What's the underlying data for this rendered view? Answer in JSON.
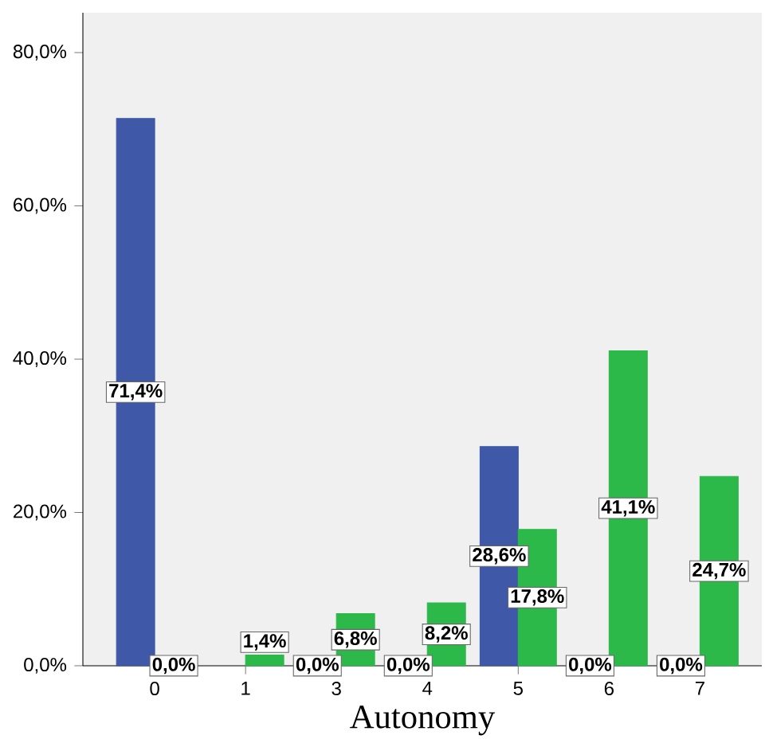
{
  "chart_data": {
    "type": "bar",
    "xlabel": "Autonomy",
    "categories": [
      "0",
      "1",
      "3",
      "4",
      "5",
      "6",
      "7"
    ],
    "series": [
      {
        "color": "#3f58a8",
        "values": [
          71.4,
          null,
          0,
          0,
          28.6,
          0,
          0
        ],
        "value_labels": [
          "71,4%",
          null,
          "0,0%",
          "0,0%",
          "28,6%",
          "0,0%",
          "0,0%"
        ]
      },
      {
        "color": "#2db84a",
        "values": [
          0,
          1.4,
          6.8,
          8.2,
          17.8,
          41.1,
          24.7
        ],
        "value_labels": [
          "0,0%",
          "1,4%",
          "6,8%",
          "8,2%",
          "17,8%",
          "41,1%",
          "24,7%"
        ]
      }
    ],
    "ylim": [
      0,
      85.2
    ],
    "yticks": [
      {
        "value": 0,
        "label": "0,0%"
      },
      {
        "value": 20,
        "label": "20,0%"
      },
      {
        "value": 40,
        "label": "40,0%"
      },
      {
        "value": 60,
        "label": "60,0%"
      },
      {
        "value": 80,
        "label": "80,0%"
      }
    ]
  }
}
